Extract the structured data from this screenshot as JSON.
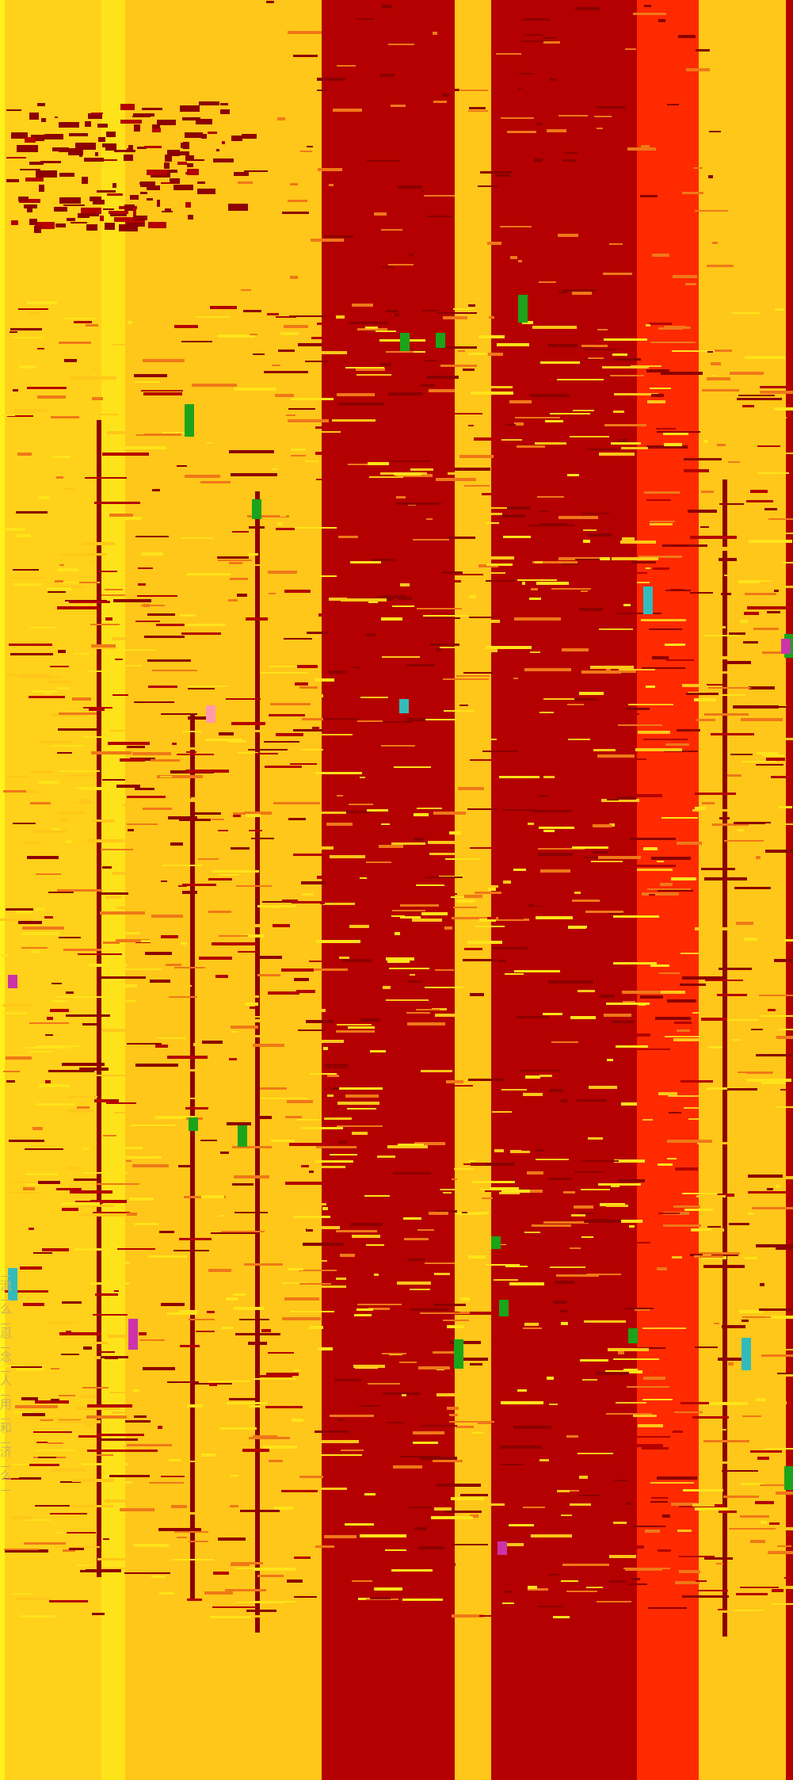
{
  "colors": {
    "base": "#ffc719",
    "left_strip": "#fff21a",
    "yellow_light": "#ffe31a",
    "yellow_mid": "#ffd11a",
    "dark_red": "#b40000",
    "maroon": "#8c0000",
    "bright_red": "#ff2a00",
    "orange": "#f07818",
    "green": "#1aa41a",
    "magenta": "#cc33aa",
    "cyan": "#33bbbb",
    "pink": "#ff99aa",
    "faint_glyph": "#c9b25a"
  },
  "glyphs": [
    "流",
    "么",
    "忍",
    "念",
    "人",
    "用",
    "和",
    "济",
    "么"
  ]
}
